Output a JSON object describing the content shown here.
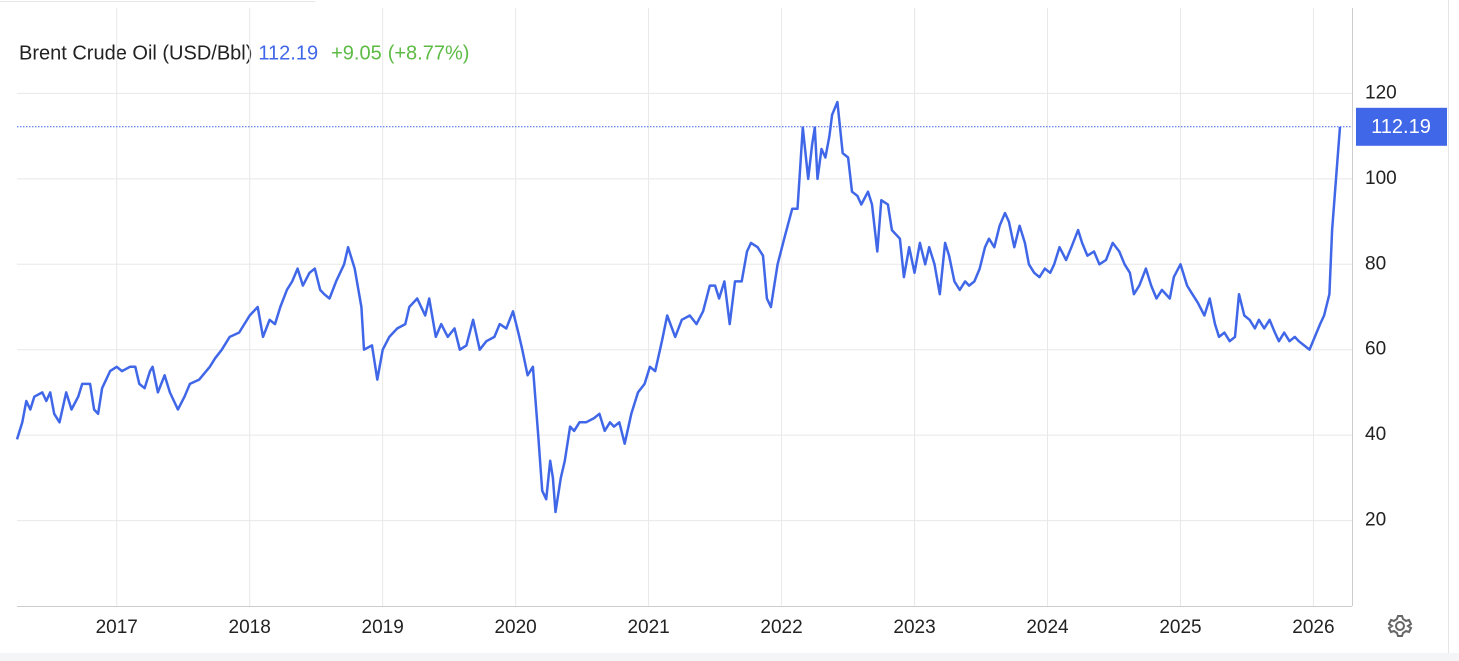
{
  "chart_data": {
    "type": "line",
    "title": "Brent Crude Oil (USD/Bbl)",
    "change": "+9.05",
    "change_percent": "(+8.77%)",
    "series": [
      {
        "name": "Brent Crude Oil",
        "color": "#4067e8",
        "x": [
          2016.25,
          2016.29,
          2016.32,
          2016.35,
          2016.38,
          2016.44,
          2016.47,
          2016.5,
          2016.53,
          2016.57,
          2016.62,
          2016.66,
          2016.71,
          2016.74,
          2016.8,
          2016.83,
          2016.86,
          2016.89,
          2016.95,
          2017.0,
          2017.04,
          2017.1,
          2017.14,
          2017.17,
          2017.21,
          2017.25,
          2017.27,
          2017.31,
          2017.36,
          2017.4,
          2017.46,
          2017.51,
          2017.55,
          2017.62,
          2017.7,
          2017.74,
          2017.79,
          2017.85,
          2017.92,
          2018.0,
          2018.06,
          2018.1,
          2018.15,
          2018.19,
          2018.23,
          2018.28,
          2018.32,
          2018.36,
          2018.4,
          2018.45,
          2018.49,
          2018.53,
          2018.56,
          2018.6,
          2018.65,
          2018.71,
          2018.74,
          2018.79,
          2018.84,
          2018.86,
          2018.92,
          2018.96,
          2019.0,
          2019.05,
          2019.11,
          2019.17,
          2019.2,
          2019.26,
          2019.32,
          2019.35,
          2019.4,
          2019.44,
          2019.49,
          2019.54,
          2019.58,
          2019.63,
          2019.68,
          2019.73,
          2019.78,
          2019.84,
          2019.88,
          2019.93,
          2019.98,
          2020.02,
          2020.05,
          2020.09,
          2020.13,
          2020.17,
          2020.2,
          2020.23,
          2020.26,
          2020.28,
          2020.3,
          2020.34,
          2020.37,
          2020.41,
          2020.44,
          2020.48,
          2020.53,
          2020.59,
          2020.63,
          2020.67,
          2020.71,
          2020.74,
          2020.78,
          2020.82,
          2020.87,
          2020.92,
          2020.97,
          2021.01,
          2021.05,
          2021.1,
          2021.14,
          2021.2,
          2021.25,
          2021.31,
          2021.36,
          2021.41,
          2021.46,
          2021.5,
          2021.53,
          2021.57,
          2021.61,
          2021.65,
          2021.7,
          2021.74,
          2021.77,
          2021.82,
          2021.86,
          2021.89,
          2021.92,
          2021.97,
          2022.02,
          2022.08,
          2022.12,
          2022.16,
          2022.2,
          2022.23,
          2022.25,
          2022.27,
          2022.3,
          2022.33,
          2022.36,
          2022.38,
          2022.42,
          2022.46,
          2022.5,
          2022.53,
          2022.57,
          2022.6,
          2022.65,
          2022.68,
          2022.72,
          2022.75,
          2022.8,
          2022.83,
          2022.89,
          2022.92,
          2022.96,
          2023.0,
          2023.04,
          2023.08,
          2023.11,
          2023.15,
          2023.19,
          2023.23,
          2023.26,
          2023.3,
          2023.34,
          2023.38,
          2023.41,
          2023.45,
          2023.49,
          2023.53,
          2023.56,
          2023.6,
          2023.64,
          2023.68,
          2023.71,
          2023.75,
          2023.79,
          2023.83,
          2023.86,
          2023.9,
          2023.94,
          2023.98,
          2024.02,
          2024.05,
          2024.09,
          2024.14,
          2024.18,
          2024.23,
          2024.26,
          2024.3,
          2024.35,
          2024.39,
          2024.44,
          2024.49,
          2024.54,
          2024.58,
          2024.62,
          2024.65,
          2024.69,
          2024.74,
          2024.78,
          2024.82,
          2024.86,
          2024.92,
          2024.95,
          2025.0,
          2025.05,
          2025.09,
          2025.13,
          2025.18,
          2025.22,
          2025.26,
          2025.29,
          2025.33,
          2025.37,
          2025.41,
          2025.44,
          2025.48,
          2025.52,
          2025.56,
          2025.59,
          2025.63,
          2025.67,
          2025.71,
          2025.74,
          2025.78,
          2025.82,
          2025.86,
          2025.89,
          2025.93,
          2025.97,
          2026.01,
          2026.05,
          2026.08,
          2026.12,
          2026.14,
          2026.17,
          2026.2
        ],
        "values": [
          39,
          43,
          48,
          46,
          49,
          50,
          48,
          50,
          45,
          43,
          50,
          46,
          49,
          52,
          52,
          46,
          45,
          51,
          55,
          56,
          55,
          56,
          56,
          52,
          51,
          55,
          56,
          50,
          54,
          50,
          46,
          49,
          52,
          53,
          56,
          58,
          60,
          63,
          64,
          68,
          70,
          63,
          67,
          66,
          70,
          74,
          76,
          79,
          75,
          78,
          79,
          74,
          73,
          72,
          76,
          80,
          84,
          79,
          70,
          60,
          61,
          53,
          60,
          63,
          65,
          66,
          70,
          72,
          68,
          72,
          63,
          66,
          63,
          65,
          60,
          61,
          67,
          60,
          62,
          63,
          66,
          65,
          69,
          64,
          60,
          54,
          56,
          40,
          27,
          25,
          34,
          30,
          22,
          30,
          34,
          42,
          41,
          43,
          43,
          44,
          45,
          41,
          43,
          42,
          43,
          38,
          45,
          50,
          52,
          56,
          55,
          62,
          68,
          63,
          67,
          68,
          66,
          69,
          75,
          75,
          72,
          76,
          66,
          76,
          76,
          83,
          85,
          84,
          82,
          72,
          70,
          80,
          86,
          93,
          93,
          112,
          100,
          108,
          112,
          100,
          107,
          105,
          110,
          115,
          118,
          106,
          105,
          97,
          96,
          94,
          97,
          94,
          83,
          95,
          94,
          88,
          86,
          77,
          84,
          78,
          85,
          80,
          84,
          80,
          73,
          85,
          82,
          76,
          74,
          76,
          75,
          76,
          79,
          84,
          86,
          84,
          89,
          92,
          90,
          84,
          89,
          85,
          80,
          78,
          77,
          79,
          78,
          80,
          84,
          81,
          84,
          88,
          85,
          82,
          83,
          80,
          81,
          85,
          83,
          80,
          78,
          73,
          75,
          79,
          75,
          72,
          74,
          72,
          77,
          80,
          75,
          73,
          71,
          68,
          72,
          66,
          63,
          64,
          62,
          63,
          73,
          68,
          67,
          65,
          67,
          65,
          67,
          64,
          62,
          64,
          62,
          63,
          62,
          61,
          60,
          63,
          66,
          68,
          73,
          88,
          100,
          112.19
        ]
      }
    ],
    "xlim": [
      2016.25,
      2026.29
    ],
    "xticks": [
      2017,
      2018,
      2019,
      2020,
      2021,
      2022,
      2023,
      2024,
      2025,
      2026
    ],
    "ylim": [
      0,
      140
    ],
    "yticks": [
      20,
      40,
      60,
      80,
      100,
      120
    ],
    "grid": true,
    "change_color": "#5dbb45"
  }
}
